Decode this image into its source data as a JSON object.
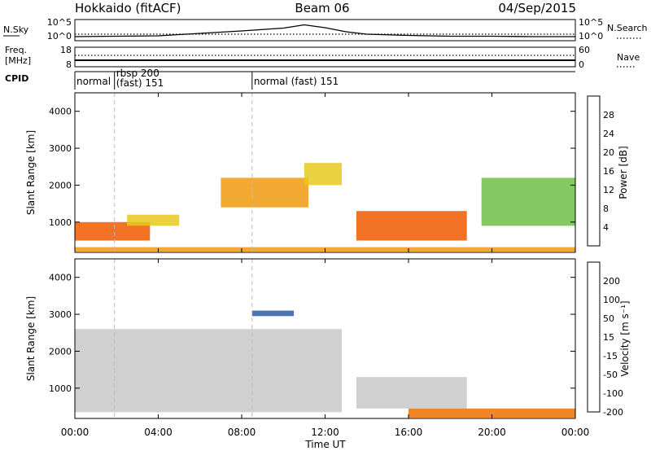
{
  "header": {
    "station": "Hokkaido (fitACF)",
    "beam": "Beam 06",
    "date": "04/Sep/2015"
  },
  "noise_panel": {
    "left_label": "N.Sky",
    "right_label": "N.Search",
    "left_ticks": [
      "10^5",
      "10^0"
    ],
    "right_ticks": [
      "10^5",
      "10^0"
    ]
  },
  "freq_panel": {
    "left_label_line1": "Freq.",
    "left_label_line2": "[MHz]",
    "right_label": "Nave",
    "left_ticks": [
      "18",
      "8"
    ],
    "right_ticks": [
      "60",
      "0"
    ]
  },
  "cpid_panel": {
    "label": "CPID",
    "segments": [
      {
        "start_hour": 0.0,
        "end_hour": 1.9,
        "text": "normal",
        "text2": ""
      },
      {
        "start_hour": 1.9,
        "end_hour": 8.5,
        "text": "rbsp 200",
        "text2": "(fast) 151"
      },
      {
        "start_hour": 8.5,
        "end_hour": 24.0,
        "text": "normal (fast) 151",
        "text2": ""
      }
    ]
  },
  "power_panel": {
    "ylabel": "Slant Range [km]",
    "yticks": [
      "1000",
      "2000",
      "3000",
      "4000"
    ],
    "colorbar": {
      "label": "Power [dB]",
      "ticks": [
        "4",
        "8",
        "12",
        "16",
        "20",
        "24",
        "28"
      ]
    }
  },
  "velocity_panel": {
    "ylabel": "Slant Range [km]",
    "yticks": [
      "1000",
      "2000",
      "3000",
      "4000"
    ],
    "colorbar": {
      "label": "Velocity [m s⁻¹]",
      "ticks": [
        "200",
        "100",
        "50",
        "15",
        "-15",
        "-50",
        "-100",
        "-200"
      ]
    }
  },
  "xaxis": {
    "label": "Time UT",
    "ticks": [
      "00:00",
      "04:00",
      "08:00",
      "12:00",
      "16:00",
      "20:00",
      "00:00"
    ]
  },
  "colors": {
    "power_scale": [
      "#0000ff",
      "#2f58b8",
      "#2e8b57",
      "#6ec045",
      "#e8c81e",
      "#f09a10",
      "#f05a00",
      "#e00000"
    ],
    "velocity_scale": [
      "#1a1acd",
      "#2e5aa8",
      "#2e8b57",
      "#7cd040",
      "#c8c8c8",
      "#f0a020",
      "#f07000",
      "#e01010"
    ]
  },
  "chart_data": {
    "type": "heatmap",
    "x_unit": "hours UT",
    "x_range": [
      0,
      24
    ],
    "y_unit": "km",
    "y_range": [
      180,
      4500
    ],
    "noise_sky_approx": [
      [
        0,
        0.4
      ],
      [
        2,
        0.5
      ],
      [
        4,
        0.6
      ],
      [
        6,
        1.2
      ],
      [
        8,
        1.8
      ],
      [
        10,
        2.5
      ],
      [
        11,
        3.3
      ],
      [
        12,
        2.6
      ],
      [
        13,
        1.6
      ],
      [
        14,
        1.0
      ],
      [
        16,
        0.7
      ],
      [
        18,
        0.5
      ],
      [
        20,
        0.5
      ],
      [
        22,
        0.4
      ],
      [
        24,
        0.4
      ]
    ],
    "power_regions": [
      {
        "t": [
          0.0,
          3.6
        ],
        "r": [
          500,
          1000
        ],
        "power_db": 26
      },
      {
        "t": [
          2.5,
          5.0
        ],
        "r": [
          900,
          1200
        ],
        "power_db": 18
      },
      {
        "t": [
          7.0,
          11.2
        ],
        "r": [
          1400,
          2200
        ],
        "power_db": 22
      },
      {
        "t": [
          11.0,
          12.8
        ],
        "r": [
          2000,
          2600
        ],
        "power_db": 18
      },
      {
        "t": [
          13.5,
          18.8
        ],
        "r": [
          500,
          1300
        ],
        "power_db": 26
      },
      {
        "t": [
          19.5,
          24.0
        ],
        "r": [
          900,
          2200
        ],
        "power_db": 14
      },
      {
        "t": [
          0.0,
          24.0
        ],
        "r": [
          200,
          320
        ],
        "power_db": 20
      }
    ],
    "velocity_regions": [
      {
        "t": [
          0.0,
          12.8
        ],
        "r": [
          350,
          2600
        ],
        "velocity": 0
      },
      {
        "t": [
          13.5,
          18.8
        ],
        "r": [
          450,
          1300
        ],
        "velocity": 0
      },
      {
        "t": [
          16.0,
          24.0
        ],
        "r": [
          200,
          450
        ],
        "velocity": -60
      },
      {
        "t": [
          8.5,
          10.5
        ],
        "r": [
          2950,
          3100
        ],
        "velocity": 120
      }
    ]
  }
}
